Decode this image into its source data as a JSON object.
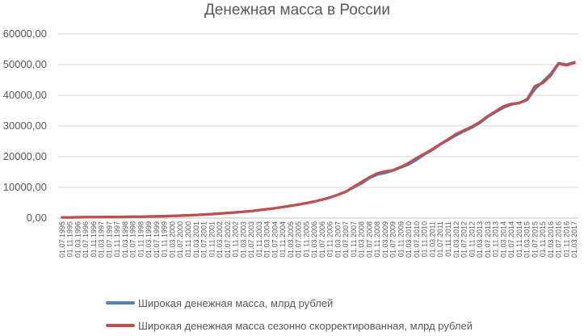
{
  "chart_data": {
    "type": "line",
    "title": "Денежная масса в России",
    "xlabel": "",
    "ylabel": "",
    "ylim": [
      0,
      60000
    ],
    "y_ticks": [
      "0,00",
      "10000,00",
      "20000,00",
      "30000,00",
      "40000,00",
      "50000,00",
      "60000,00"
    ],
    "x_tick_labels": [
      "01.07.1995",
      "01.11.1995",
      "01.03.1996",
      "01.07.1996",
      "01.11.1996",
      "01.03.1997",
      "01.07.1997",
      "01.11.1997",
      "01.03.1998",
      "01.07.1998",
      "01.11.1998",
      "01.03.1999",
      "01.07.1999",
      "01.11.1999",
      "01.03.2000",
      "01.07.2000",
      "01.11.2000",
      "01.03.2001",
      "01.07.2001",
      "01.11.2001",
      "01.03.2002",
      "01.07.2002",
      "01.11.2002",
      "01.03.2003",
      "01.07.2003",
      "01.11.2003",
      "01.03.2004",
      "01.07.2004",
      "01.11.2004",
      "01.03.2005",
      "01.07.2005",
      "01.11.2005",
      "01.03.2006",
      "01.07.2006",
      "01.11.2006",
      "01.03.2007",
      "01.07.2007",
      "01.11.2007",
      "01.03.2008",
      "01.07.2008",
      "01.11.2008",
      "01.03.2009",
      "01.07.2009",
      "01.11.2009",
      "01.03.2010",
      "01.07.2010",
      "01.11.2010",
      "01.03.2011",
      "01.07.2011",
      "01.11.2011",
      "01.03.2012",
      "01.07.2012",
      "01.11.2012",
      "01.03.2013",
      "01.07.2013",
      "01.11.2013",
      "01.03.2014",
      "01.07.2014",
      "01.11.2014",
      "01.03.2015",
      "01.07.2015",
      "01.11.2015",
      "01.03.2016",
      "01.07.2016",
      "01.11.2016",
      "01.03.2017"
    ],
    "legend_position": "bottom",
    "grid": "horizontal",
    "series": [
      {
        "name": "Широкая денежная масса, млрд рублей",
        "color": "#4f81bd",
        "values": [
          230,
          250,
          270,
          300,
          320,
          340,
          360,
          380,
          400,
          420,
          450,
          520,
          560,
          620,
          700,
          800,
          900,
          1000,
          1150,
          1300,
          1480,
          1650,
          1850,
          2050,
          2300,
          2600,
          2900,
          3200,
          3600,
          4000,
          4400,
          4900,
          5400,
          6000,
          6700,
          7600,
          8600,
          10000,
          11300,
          13000,
          14200,
          14700,
          15500,
          16500,
          17500,
          19000,
          20800,
          22200,
          24000,
          25500,
          27000,
          28300,
          29500,
          31000,
          33000,
          34500,
          36000,
          37000,
          37500,
          38500,
          42000,
          44500,
          47000,
          50500,
          50000,
          50800
        ]
      },
      {
        "name": "Широкая денежная масса сезонно скорректированная, млрд рублей",
        "color": "#c0504d",
        "values": [
          230,
          250,
          270,
          300,
          320,
          340,
          360,
          380,
          400,
          420,
          450,
          520,
          560,
          620,
          700,
          800,
          900,
          1000,
          1150,
          1300,
          1480,
          1650,
          1850,
          2050,
          2300,
          2600,
          2900,
          3200,
          3600,
          4000,
          4400,
          4900,
          5400,
          6000,
          6700,
          7600,
          8600,
          10200,
          11800,
          13300,
          14600,
          15200,
          15600,
          16700,
          18000,
          19600,
          21000,
          22500,
          24100,
          25700,
          27400,
          28600,
          29800,
          31300,
          33200,
          34800,
          36400,
          37200,
          37500,
          38700,
          43000,
          44000,
          46500,
          50300,
          49800,
          50600
        ]
      }
    ]
  }
}
